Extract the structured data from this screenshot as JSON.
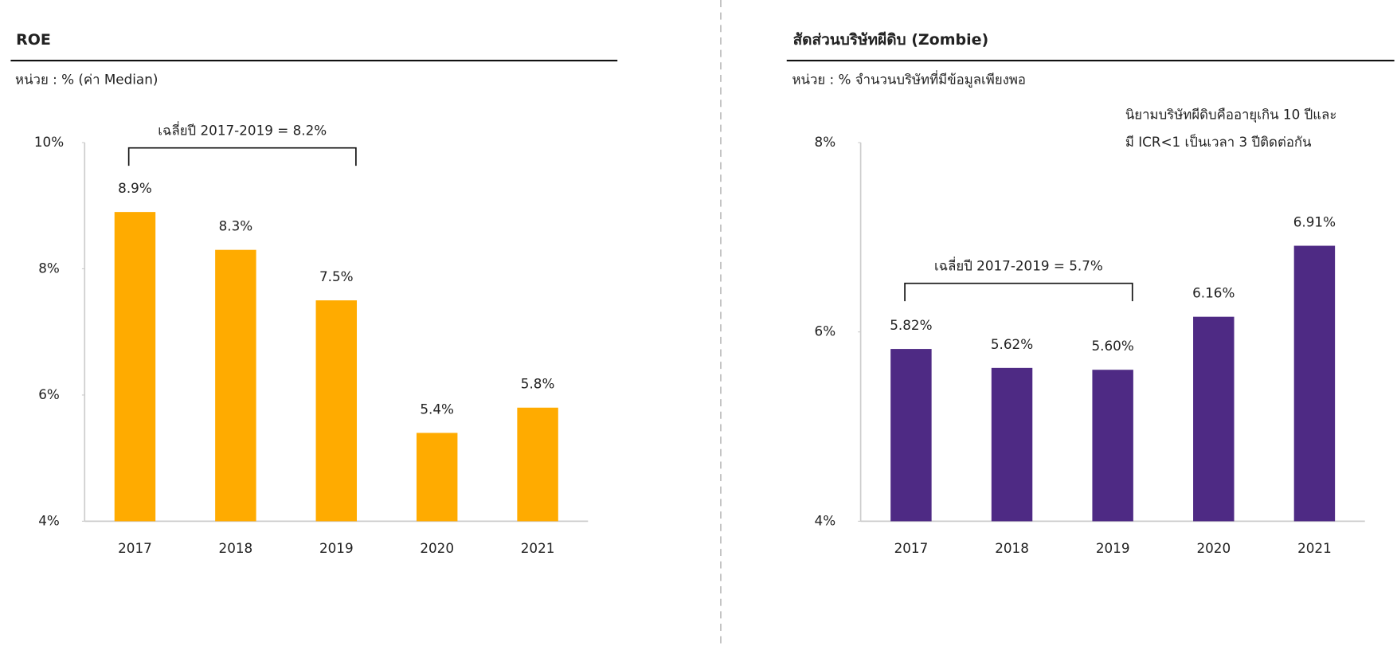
{
  "chart_data": [
    {
      "type": "bar",
      "title": "ROE",
      "subtitle": "หน่วย : % (ค่า Median)",
      "annotation": "เฉลี่ยปี 2017-2019 = 8.2%",
      "categories": [
        "2017",
        "2018",
        "2019",
        "2020",
        "2021"
      ],
      "values": [
        8.9,
        8.3,
        7.5,
        5.4,
        5.8
      ],
      "value_labels": [
        "8.9%",
        "8.3%",
        "7.5%",
        "5.4%",
        "5.8%"
      ],
      "color": "#ffab00",
      "ylim": [
        4,
        10
      ],
      "yticks": [
        {
          "value": 4,
          "label": "4%"
        },
        {
          "value": 6,
          "label": "6%"
        },
        {
          "value": 8,
          "label": "8%"
        },
        {
          "value": 10,
          "label": "10%"
        }
      ]
    },
    {
      "type": "bar",
      "title": "สัดส่วนบริษัทผีดิบ  (Zombie)",
      "subtitle": "หน่วย : % จำนวนบริษัทที่มีข้อมูลเพียงพอ",
      "annotation": "เฉลี่ยปี 2017-2019 = 5.7%",
      "note": [
        "นิยามบริษัทผีดิบคืออายุเกิน  10 ปีและ",
        "มี ICR<1 เป็นเวลา 3 ปีติดต่อกัน"
      ],
      "categories": [
        "2017",
        "2018",
        "2019",
        "2020",
        "2021"
      ],
      "values": [
        5.82,
        5.62,
        5.6,
        6.16,
        6.91
      ],
      "value_labels": [
        "5.82%",
        "5.62%",
        "5.60%",
        "6.16%",
        "6.91%"
      ],
      "color": "#4e2a84",
      "ylim": [
        4,
        8
      ],
      "yticks": [
        {
          "value": 4,
          "label": "4%"
        },
        {
          "value": 6,
          "label": "6%"
        },
        {
          "value": 8,
          "label": "8%"
        }
      ]
    }
  ]
}
